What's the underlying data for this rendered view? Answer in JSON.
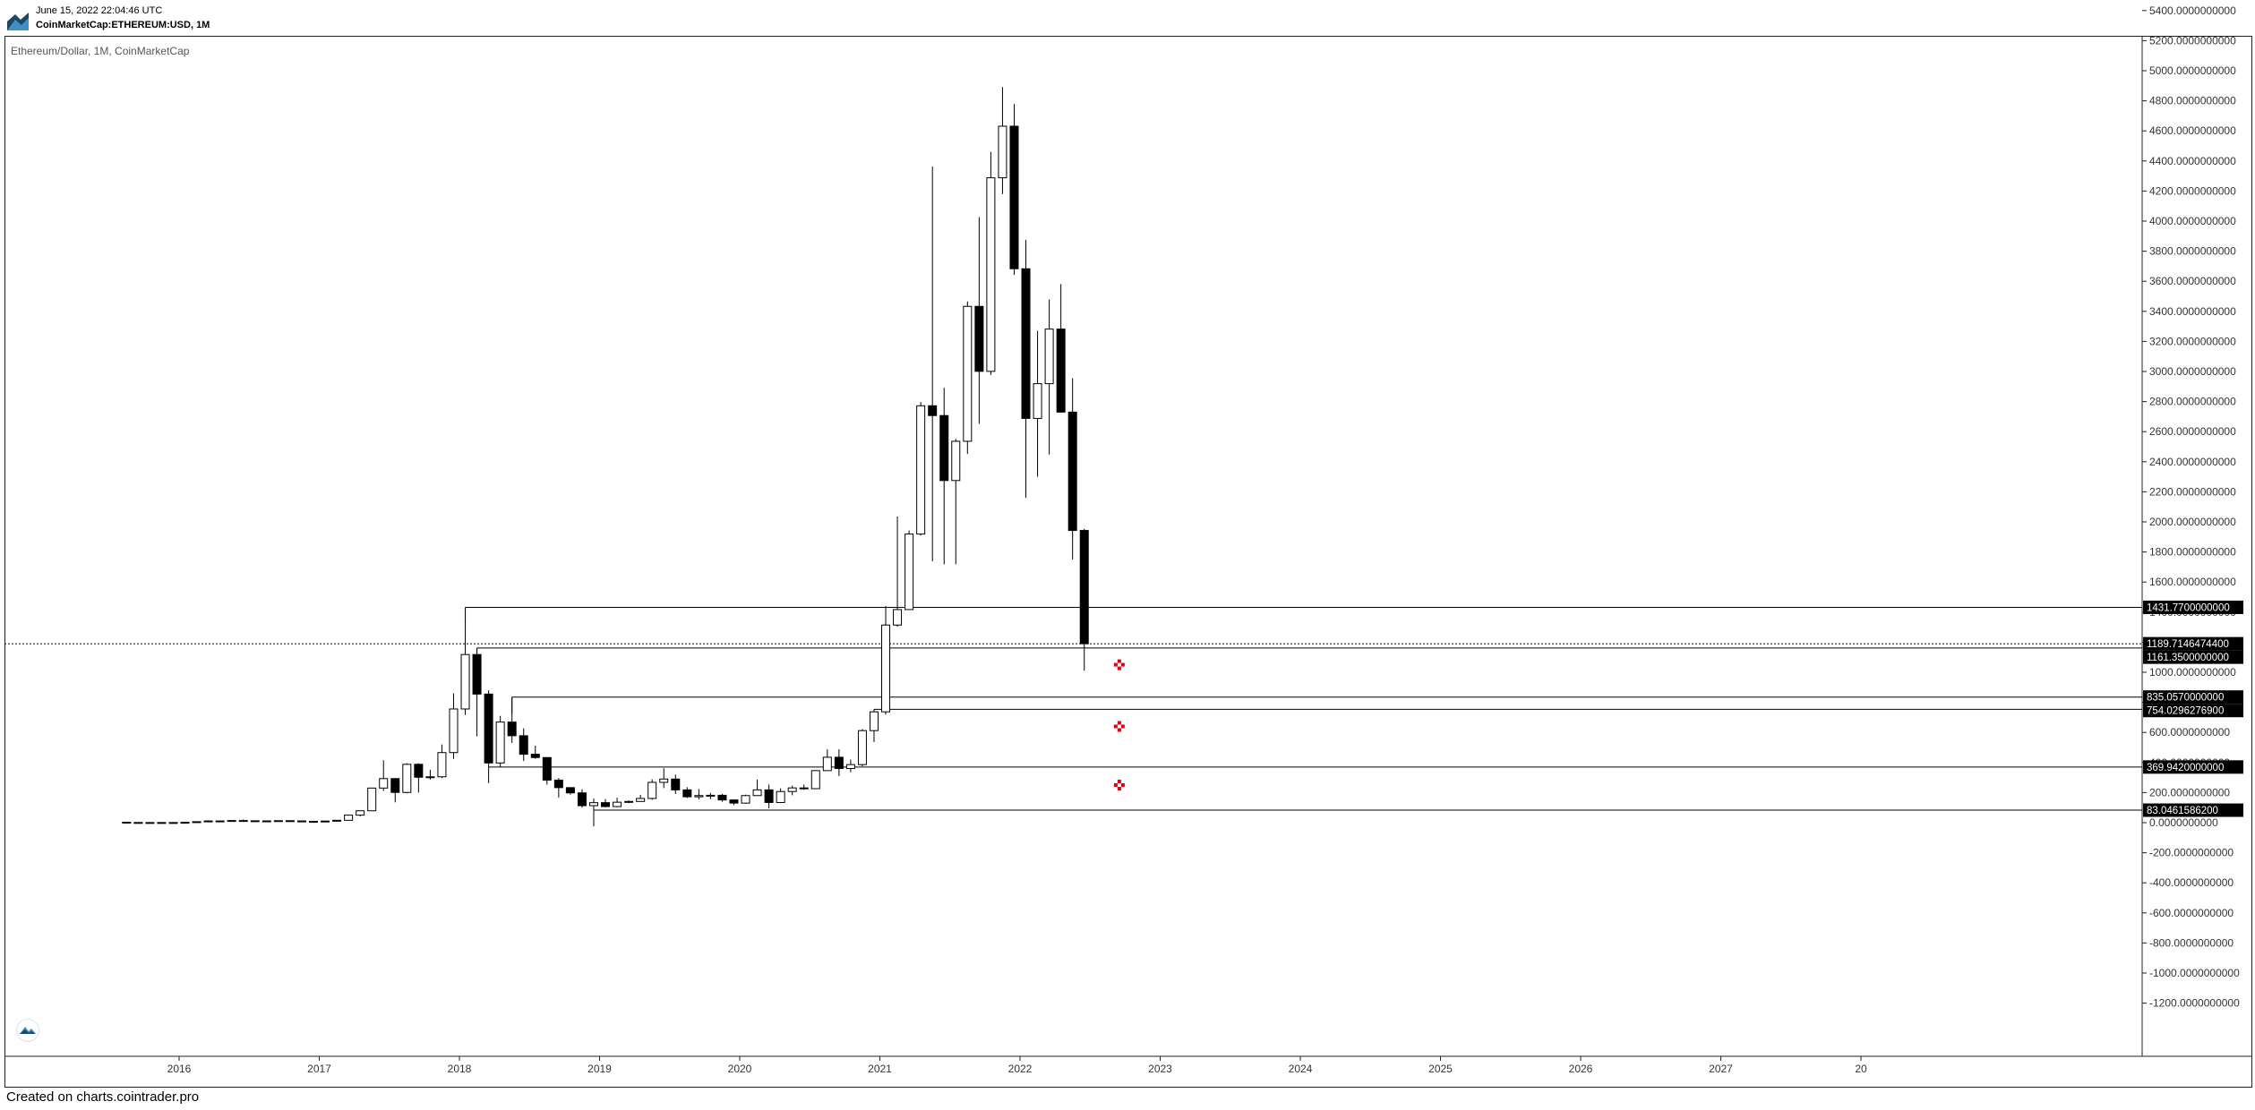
{
  "header": {
    "date": "June 15, 2022 22:04:46 UTC",
    "symbol": "CoinMarketCap:ETHEREUM:USD, 1M"
  },
  "footer": {
    "text": "Created on charts.cointrader.pro"
  },
  "colors": {
    "up": "#ffffff",
    "down": "#000000",
    "outline": "#000000",
    "marker": "#e0000f"
  },
  "icons": {
    "app_logo": "mountain-logo-icon",
    "watermark": "cointrader-logo-icon"
  },
  "chart_data": {
    "type": "candlestick",
    "title": "Ethereum/Dollar, 1M, CoinMarketCap",
    "y_tick_labels": [
      "5400.0000000000",
      "5200.0000000000",
      "5000.0000000000",
      "4800.0000000000",
      "4600.0000000000",
      "4400.0000000000",
      "4200.0000000000",
      "4000.0000000000",
      "3800.0000000000",
      "3600.0000000000",
      "3400.0000000000",
      "3200.0000000000",
      "3000.0000000000",
      "2800.0000000000",
      "2600.0000000000",
      "2400.0000000000",
      "2200.0000000000",
      "2000.0000000000",
      "1800.0000000000",
      "1600.0000000000",
      "1400.0000000000",
      "1200.0000000000",
      "1000.0000000000",
      "800.0000000000",
      "600.0000000000",
      "400.0000000000",
      "200.0000000000",
      "0.0000000000",
      "-200.0000000000",
      "-400.0000000000",
      "-600.0000000000",
      "-800.0000000000",
      "-1000.0000000000",
      "-1200.0000000000"
    ],
    "x_tick_labels": [
      "2016",
      "2017",
      "2018",
      "2019",
      "2020",
      "2021",
      "2022",
      "2023",
      "2024",
      "2025",
      "2026",
      "2027",
      "20"
    ],
    "ylim": [
      -1300,
      5500
    ],
    "grid": false,
    "candles": [
      {
        "t": "2015-08",
        "o": 2.8,
        "h": 3.5,
        "l": 0.6,
        "c": 1.2
      },
      {
        "t": "2015-09",
        "o": 1.2,
        "h": 1.4,
        "l": 0.6,
        "c": 0.7
      },
      {
        "t": "2015-10",
        "o": 0.7,
        "h": 1.2,
        "l": 0.4,
        "c": 0.9
      },
      {
        "t": "2015-11",
        "o": 0.9,
        "h": 1.1,
        "l": 0.8,
        "c": 0.9
      },
      {
        "t": "2015-12",
        "o": 0.9,
        "h": 1.0,
        "l": 0.8,
        "c": 0.9
      },
      {
        "t": "2016-01",
        "o": 0.9,
        "h": 2.3,
        "l": 0.9,
        "c": 2.3
      },
      {
        "t": "2016-02",
        "o": 2.3,
        "h": 6.7,
        "l": 2.1,
        "c": 6.4
      },
      {
        "t": "2016-03",
        "o": 6.4,
        "h": 15.1,
        "l": 6.4,
        "c": 11.4
      },
      {
        "t": "2016-04",
        "o": 11.4,
        "h": 11.4,
        "l": 7.0,
        "c": 8.8
      },
      {
        "t": "2016-05",
        "o": 8.8,
        "h": 14.6,
        "l": 8.6,
        "c": 14.1
      },
      {
        "t": "2016-06",
        "o": 14.1,
        "h": 21.5,
        "l": 11.0,
        "c": 12.5
      },
      {
        "t": "2016-07",
        "o": 12.5,
        "h": 14.5,
        "l": 9.6,
        "c": 11.8
      },
      {
        "t": "2016-08",
        "o": 11.8,
        "h": 12.7,
        "l": 10.0,
        "c": 11.3
      },
      {
        "t": "2016-09",
        "o": 11.3,
        "h": 14.0,
        "l": 11.3,
        "c": 13.2
      },
      {
        "t": "2016-10",
        "o": 13.2,
        "h": 13.2,
        "l": 10.6,
        "c": 11.5
      },
      {
        "t": "2016-11",
        "o": 11.5,
        "h": 11.5,
        "l": 8.4,
        "c": 8.6
      },
      {
        "t": "2016-12",
        "o": 8.6,
        "h": 9.0,
        "l": 6.2,
        "c": 8.2
      },
      {
        "t": "2017-01",
        "o": 8.2,
        "h": 11.5,
        "l": 8.0,
        "c": 10.7
      },
      {
        "t": "2017-02",
        "o": 10.7,
        "h": 16.4,
        "l": 10.4,
        "c": 15.7
      },
      {
        "t": "2017-03",
        "o": 15.7,
        "h": 54.0,
        "l": 15.7,
        "c": 50.0
      },
      {
        "t": "2017-04",
        "o": 50.0,
        "h": 80.0,
        "l": 42.0,
        "c": 79.0
      },
      {
        "t": "2017-05",
        "o": 79.0,
        "h": 230.0,
        "l": 78.0,
        "c": 230.0
      },
      {
        "t": "2017-06",
        "o": 230.0,
        "h": 415.0,
        "l": 210.0,
        "c": 293.0
      },
      {
        "t": "2017-07",
        "o": 293.0,
        "h": 296.0,
        "l": 135.0,
        "c": 201.0
      },
      {
        "t": "2017-08",
        "o": 201.0,
        "h": 395.0,
        "l": 195.0,
        "c": 388.0
      },
      {
        "t": "2017-09",
        "o": 388.0,
        "h": 395.0,
        "l": 200.0,
        "c": 302.0
      },
      {
        "t": "2017-10",
        "o": 302.0,
        "h": 352.0,
        "l": 286.0,
        "c": 305.0
      },
      {
        "t": "2017-11",
        "o": 305.0,
        "h": 520.0,
        "l": 296.0,
        "c": 466.0
      },
      {
        "t": "2017-12",
        "o": 466.0,
        "h": 860.0,
        "l": 424.0,
        "c": 756.0
      },
      {
        "t": "2018-01",
        "o": 756.0,
        "h": 1431.77,
        "l": 716.0,
        "c": 1118.0
      },
      {
        "t": "2018-02",
        "o": 1118.0,
        "h": 1161.35,
        "l": 574.0,
        "c": 855.0
      },
      {
        "t": "2018-03",
        "o": 855.0,
        "h": 880.0,
        "l": 369.94,
        "c": 397.0
      },
      {
        "t": "2018-04",
        "o": 397.0,
        "h": 710.0,
        "l": 370.0,
        "c": 669.0
      },
      {
        "t": "2018-05",
        "o": 669.0,
        "h": 835.06,
        "l": 530.0,
        "c": 578.0
      },
      {
        "t": "2018-06",
        "o": 578.0,
        "h": 627.0,
        "l": 410.0,
        "c": 455.0
      },
      {
        "t": "2018-07",
        "o": 455.0,
        "h": 512.0,
        "l": 425.0,
        "c": 433.0
      },
      {
        "t": "2018-08",
        "o": 433.0,
        "h": 434.0,
        "l": 253.0,
        "c": 283.0
      },
      {
        "t": "2018-09",
        "o": 283.0,
        "h": 296.0,
        "l": 167.0,
        "c": 233.0
      },
      {
        "t": "2018-10",
        "o": 233.0,
        "h": 233.0,
        "l": 187.0,
        "c": 198.0
      },
      {
        "t": "2018-11",
        "o": 198.0,
        "h": 222.0,
        "l": 101.0,
        "c": 113.0
      },
      {
        "t": "2018-12",
        "o": 113.0,
        "h": 160.0,
        "l": 83.05,
        "c": 133.0
      },
      {
        "t": "2019-01",
        "o": 133.0,
        "h": 158.0,
        "l": 101.0,
        "c": 107.0
      },
      {
        "t": "2019-02",
        "o": 107.0,
        "h": 166.0,
        "l": 102.0,
        "c": 136.0
      },
      {
        "t": "2019-03",
        "o": 136.0,
        "h": 148.0,
        "l": 130.0,
        "c": 141.0
      },
      {
        "t": "2019-04",
        "o": 141.0,
        "h": 185.0,
        "l": 141.0,
        "c": 161.0
      },
      {
        "t": "2019-05",
        "o": 161.0,
        "h": 288.0,
        "l": 152.0,
        "c": 268.0
      },
      {
        "t": "2019-06",
        "o": 268.0,
        "h": 362.0,
        "l": 230.0,
        "c": 290.0
      },
      {
        "t": "2019-07",
        "o": 290.0,
        "h": 320.0,
        "l": 191.0,
        "c": 218.0
      },
      {
        "t": "2019-08",
        "o": 218.0,
        "h": 236.0,
        "l": 164.0,
        "c": 172.0
      },
      {
        "t": "2019-09",
        "o": 172.0,
        "h": 224.0,
        "l": 155.0,
        "c": 180.0
      },
      {
        "t": "2019-10",
        "o": 180.0,
        "h": 197.0,
        "l": 156.0,
        "c": 182.0
      },
      {
        "t": "2019-11",
        "o": 182.0,
        "h": 191.0,
        "l": 139.0,
        "c": 151.0
      },
      {
        "t": "2019-12",
        "o": 151.0,
        "h": 154.0,
        "l": 117.0,
        "c": 130.0
      },
      {
        "t": "2020-01",
        "o": 130.0,
        "h": 186.0,
        "l": 126.0,
        "c": 180.0
      },
      {
        "t": "2020-02",
        "o": 180.0,
        "h": 287.0,
        "l": 180.0,
        "c": 218.0
      },
      {
        "t": "2020-03",
        "o": 218.0,
        "h": 253.0,
        "l": 95.0,
        "c": 134.0
      },
      {
        "t": "2020-04",
        "o": 134.0,
        "h": 228.0,
        "l": 130.0,
        "c": 207.0
      },
      {
        "t": "2020-05",
        "o": 207.0,
        "h": 246.0,
        "l": 182.0,
        "c": 231.0
      },
      {
        "t": "2020-06",
        "o": 231.0,
        "h": 253.0,
        "l": 218.0,
        "c": 226.0
      },
      {
        "t": "2020-07",
        "o": 226.0,
        "h": 349.0,
        "l": 225.0,
        "c": 346.0
      },
      {
        "t": "2020-08",
        "o": 346.0,
        "h": 487.0,
        "l": 346.0,
        "c": 435.0
      },
      {
        "t": "2020-09",
        "o": 435.0,
        "h": 488.0,
        "l": 310.0,
        "c": 360.0
      },
      {
        "t": "2020-10",
        "o": 360.0,
        "h": 420.0,
        "l": 335.0,
        "c": 386.0
      },
      {
        "t": "2020-11",
        "o": 386.0,
        "h": 622.0,
        "l": 375.0,
        "c": 612.0
      },
      {
        "t": "2020-12",
        "o": 612.0,
        "h": 754.03,
        "l": 536.0,
        "c": 737.0
      },
      {
        "t": "2021-01",
        "o": 737.0,
        "h": 1440.0,
        "l": 718.0,
        "c": 1314.0
      },
      {
        "t": "2021-02",
        "o": 1314.0,
        "h": 2036.0,
        "l": 1303.0,
        "c": 1417.0
      },
      {
        "t": "2021-03",
        "o": 1417.0,
        "h": 1943.0,
        "l": 1431.0,
        "c": 1919.0
      },
      {
        "t": "2021-04",
        "o": 1919.0,
        "h": 2797.0,
        "l": 1909.0,
        "c": 2772.0
      },
      {
        "t": "2021-05",
        "o": 2772.0,
        "h": 4362.0,
        "l": 1738.0,
        "c": 2707.0
      },
      {
        "t": "2021-06",
        "o": 2707.0,
        "h": 2891.0,
        "l": 1718.0,
        "c": 2275.0
      },
      {
        "t": "2021-07",
        "o": 2275.0,
        "h": 2551.0,
        "l": 1719.0,
        "c": 2536.0
      },
      {
        "t": "2021-08",
        "o": 2536.0,
        "h": 3466.0,
        "l": 2452.0,
        "c": 3433.0
      },
      {
        "t": "2021-09",
        "o": 3433.0,
        "h": 4027.0,
        "l": 2652.0,
        "c": 3001.0
      },
      {
        "t": "2021-10",
        "o": 3001.0,
        "h": 4460.0,
        "l": 2977.0,
        "c": 4288.0
      },
      {
        "t": "2021-11",
        "o": 4288.0,
        "h": 4891.0,
        "l": 4180.0,
        "c": 4631.0
      },
      {
        "t": "2021-12",
        "o": 4631.0,
        "h": 4778.0,
        "l": 3643.0,
        "c": 3683.0
      },
      {
        "t": "2022-01",
        "o": 3683.0,
        "h": 3876.0,
        "l": 2159.0,
        "c": 2688.0
      },
      {
        "t": "2022-02",
        "o": 2688.0,
        "h": 3270.0,
        "l": 2300.0,
        "c": 2919.0
      },
      {
        "t": "2022-03",
        "o": 2919.0,
        "h": 3479.0,
        "l": 2448.0,
        "c": 3282.0
      },
      {
        "t": "2022-04",
        "o": 3282.0,
        "h": 3581.0,
        "l": 2794.0,
        "c": 2730.0
      },
      {
        "t": "2022-05",
        "o": 2730.0,
        "h": 2955.0,
        "l": 1749.0,
        "c": 1943.0
      },
      {
        "t": "2022-06",
        "o": 1943.0,
        "h": 1954.0,
        "l": 1010.0,
        "c": 1189.71
      }
    ],
    "levels": [
      {
        "label": "1431.7700000000",
        "value": 1431.77,
        "from": "2018-01"
      },
      {
        "label": "1189.7146474400",
        "value": 1189.71,
        "from": null,
        "dotted": true
      },
      {
        "label": "1161.3500000000",
        "value": 1161.35,
        "from": "2018-02"
      },
      {
        "label": "835.0570000000",
        "value": 835.06,
        "from": "2018-05"
      },
      {
        "label": "754.0296276900",
        "value": 754.03,
        "from": "2020-12"
      },
      {
        "label": "369.9420000000",
        "value": 369.94,
        "from": "2018-03"
      },
      {
        "label": "83.0461586200",
        "value": 83.05,
        "from": "2018-12"
      }
    ],
    "markers": [
      {
        "t": "2022-09",
        "value": 1050
      },
      {
        "t": "2022-09",
        "value": 640
      },
      {
        "t": "2022-09",
        "value": 250
      }
    ]
  }
}
